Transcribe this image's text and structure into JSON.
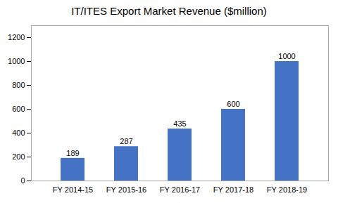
{
  "chart_data": {
    "type": "bar",
    "title": "IT/ITES Export Market Revenue ($million)",
    "categories": [
      "FY 2014-15",
      "FY 2015-16",
      "FY 2016-17",
      "FY 2017-18",
      "FY 2018-19"
    ],
    "values": [
      189,
      287,
      435,
      600,
      1000
    ],
    "color": "#4472C4",
    "ylim": [
      0,
      1300
    ],
    "yticks": [
      0,
      200,
      400,
      600,
      800,
      1000,
      1200
    ],
    "grid": false,
    "data_labels": true
  }
}
